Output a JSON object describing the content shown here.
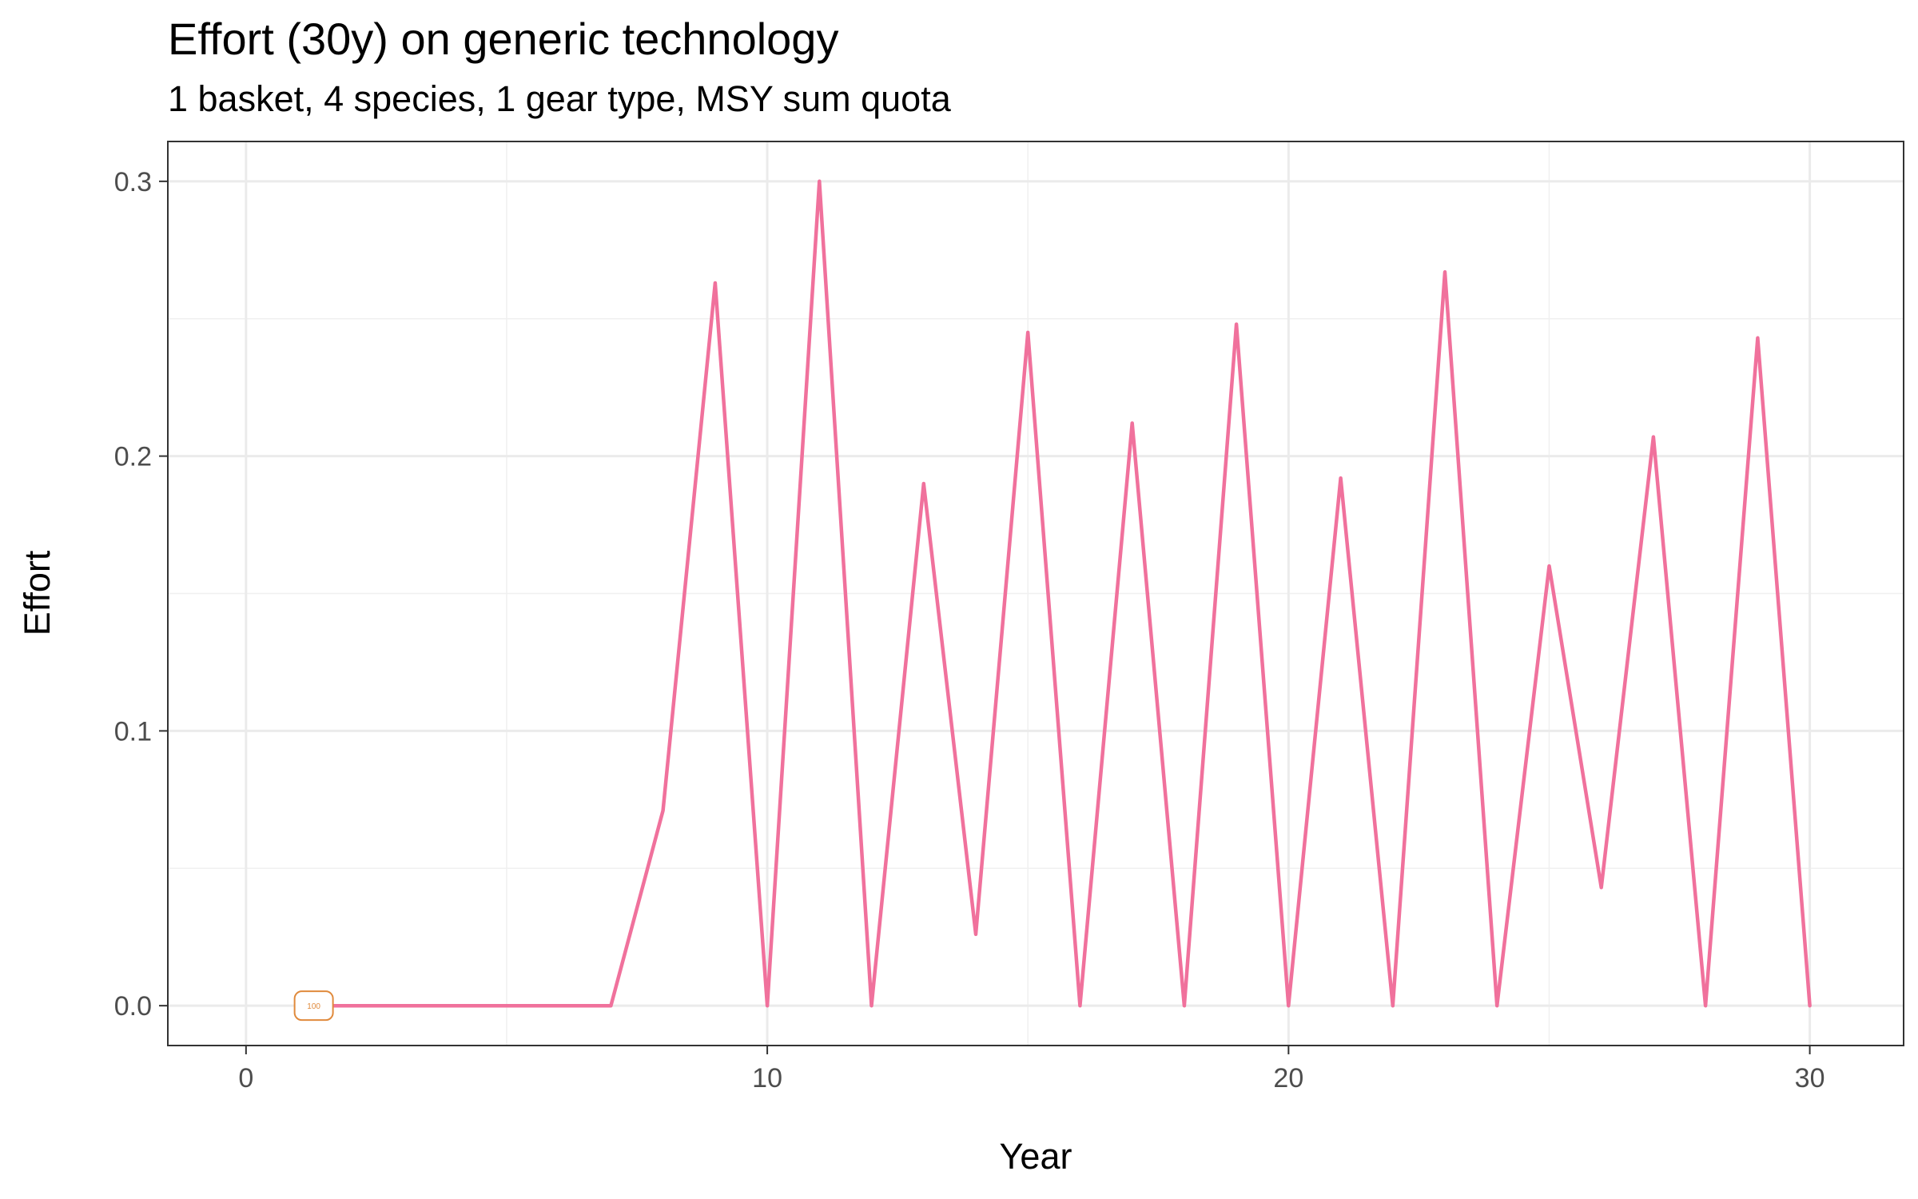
{
  "chart_data": {
    "type": "line",
    "title": "Effort (30y) on generic technology",
    "subtitle": "1 basket, 4 species, 1 gear type, MSY sum quota",
    "xlabel": "Year",
    "ylabel": "Effort",
    "xlim": [
      -1.5,
      31.8
    ],
    "ylim": [
      -0.0145,
      0.3145
    ],
    "x_ticks": [
      0,
      10,
      20,
      30
    ],
    "x_tick_labels": [
      "0",
      "10",
      "20",
      "30"
    ],
    "y_ticks": [
      0.0,
      0.1,
      0.2,
      0.3
    ],
    "y_tick_labels": [
      "0.0",
      "0.1",
      "0.2",
      "0.3"
    ],
    "grid": true,
    "series": [
      {
        "color": "#f0719c",
        "x": [
          1,
          2,
          3,
          4,
          5,
          6,
          7,
          8,
          9,
          10,
          11,
          12,
          13,
          14,
          15,
          16,
          17,
          18,
          19,
          20,
          21,
          22,
          23,
          24,
          25,
          26,
          27,
          28,
          29,
          30
        ],
        "values": [
          0,
          0,
          0,
          0,
          0,
          0,
          0,
          0.071,
          0.263,
          0,
          0.3,
          0,
          0.19,
          0.026,
          0.245,
          0,
          0.212,
          0,
          0.248,
          0,
          0.192,
          0,
          0.267,
          0,
          0.16,
          0.043,
          0.207,
          0,
          0.243,
          0
        ]
      }
    ],
    "annotations": [
      {
        "text": "100",
        "x": 1.3,
        "y": 0,
        "color": "#e08a3c"
      }
    ]
  }
}
